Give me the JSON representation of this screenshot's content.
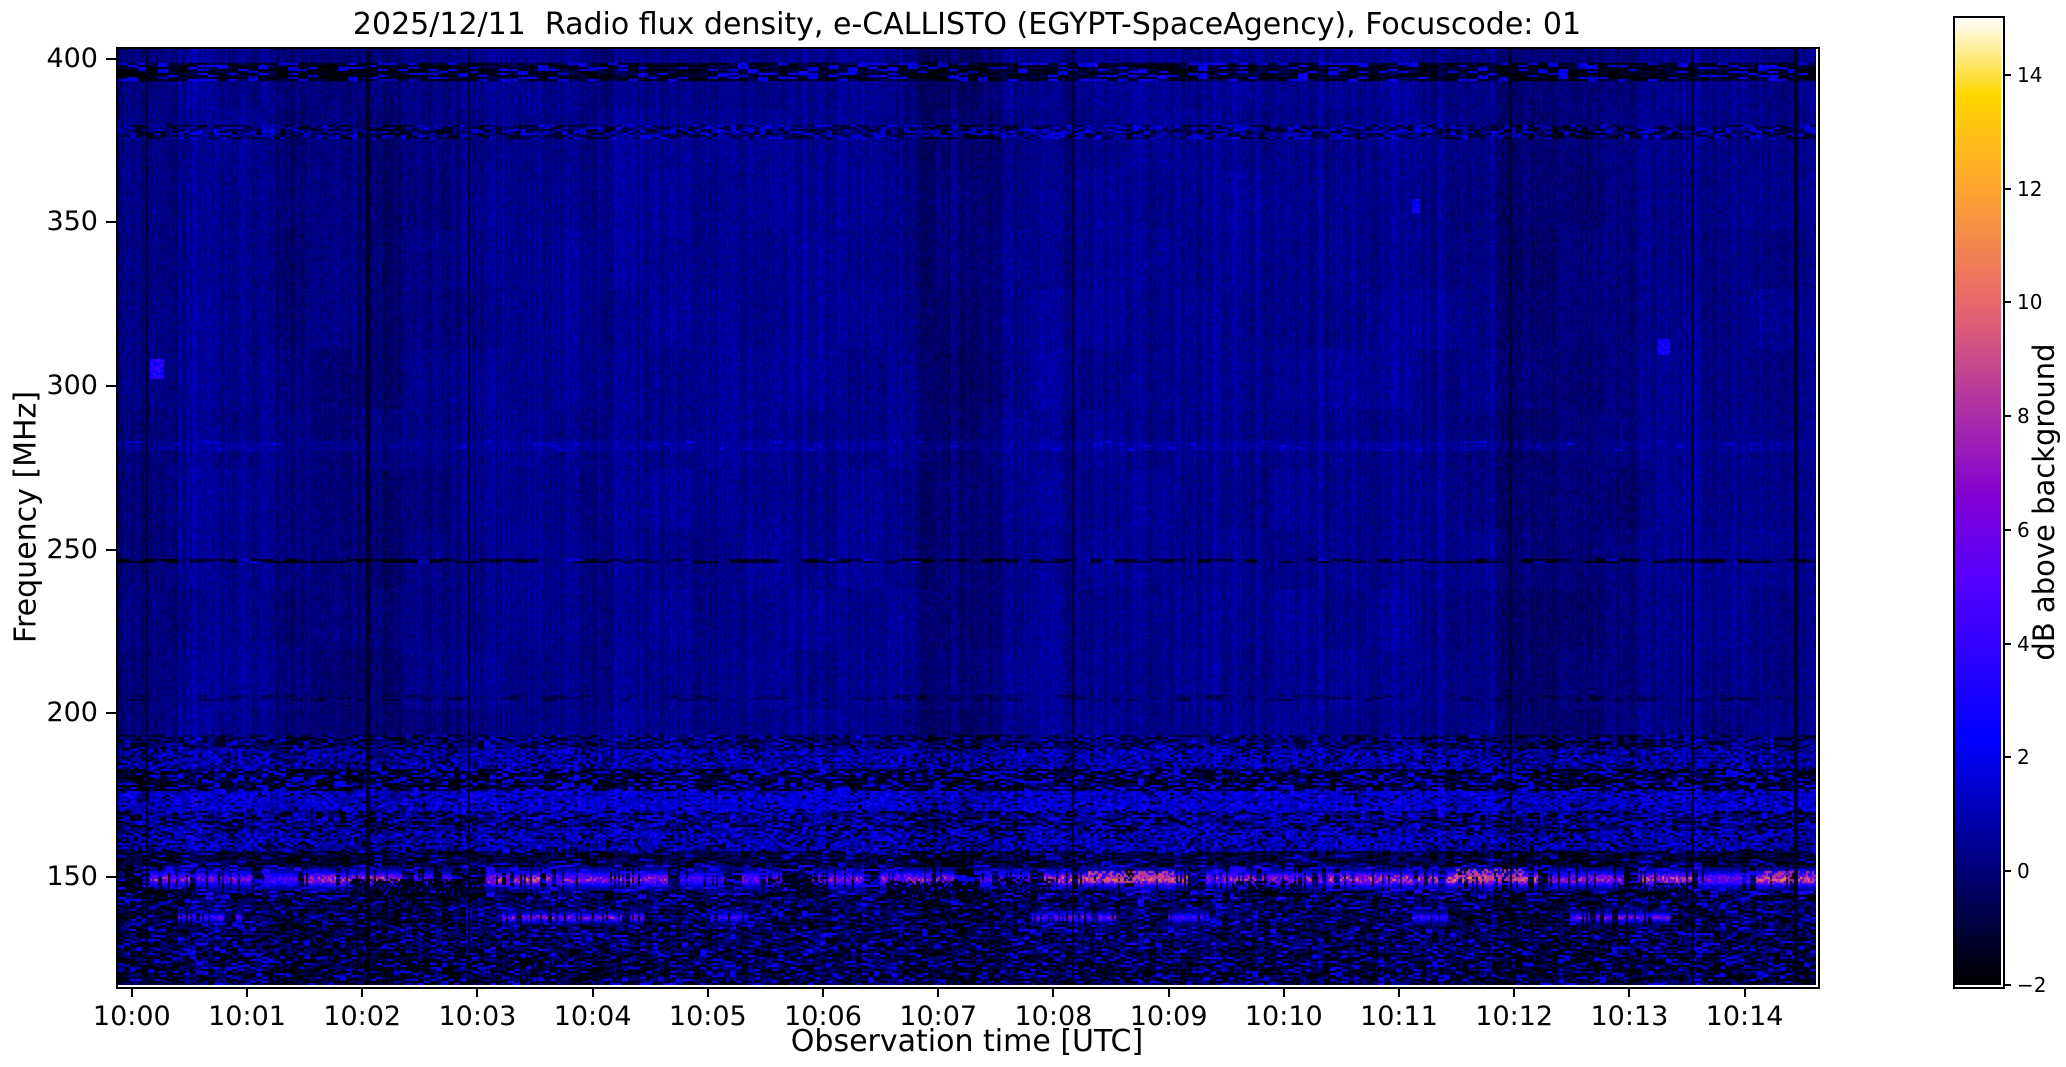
{
  "chart_data": {
    "type": "heatmap",
    "title": "2025/12/11  Radio flux density, e-CALLISTO (EGYPT-SpaceAgency), Focuscode: 01",
    "xlabel": "Observation time [UTC]",
    "ylabel": "Frequency [MHz]",
    "x_ticks": [
      {
        "minute": 0,
        "label": "10:00"
      },
      {
        "minute": 1,
        "label": "10:01"
      },
      {
        "minute": 2,
        "label": "10:02"
      },
      {
        "minute": 3,
        "label": "10:03"
      },
      {
        "minute": 4,
        "label": "10:04"
      },
      {
        "minute": 5,
        "label": "10:05"
      },
      {
        "minute": 6,
        "label": "10:06"
      },
      {
        "minute": 7,
        "label": "10:07"
      },
      {
        "minute": 8,
        "label": "10:08"
      },
      {
        "minute": 9,
        "label": "10:09"
      },
      {
        "minute": 10,
        "label": "10:10"
      },
      {
        "minute": 11,
        "label": "10:11"
      },
      {
        "minute": 12,
        "label": "10:12"
      },
      {
        "minute": 13,
        "label": "10:13"
      },
      {
        "minute": 14,
        "label": "10:14"
      }
    ],
    "x_range_minutes": [
      -0.12,
      14.62
    ],
    "x_start_time_utc": "10:00",
    "y_ticks": [
      {
        "value": 400,
        "label": "400"
      },
      {
        "value": 350,
        "label": "350"
      },
      {
        "value": 300,
        "label": "300"
      },
      {
        "value": 250,
        "label": "250"
      },
      {
        "value": 200,
        "label": "200"
      },
      {
        "value": 150,
        "label": "150"
      }
    ],
    "y_range_mhz": [
      117,
      403
    ],
    "grid": false,
    "colorbar": {
      "label": "dB above background",
      "ticks": [
        {
          "value": 14,
          "label": "14"
        },
        {
          "value": 12,
          "label": "12"
        },
        {
          "value": 10,
          "label": "10"
        },
        {
          "value": 8,
          "label": "8"
        },
        {
          "value": 6,
          "label": "6"
        },
        {
          "value": 4,
          "label": "4"
        },
        {
          "value": 2,
          "label": "2"
        },
        {
          "value": 0,
          "label": "0"
        },
        {
          "value": -2,
          "label": "−2"
        }
      ],
      "range": [
        -2,
        15
      ],
      "colormap": "gnuplot2",
      "stops": [
        [
          0.0,
          "#000000"
        ],
        [
          0.118,
          "#000078"
        ],
        [
          0.25,
          "#0000ff"
        ],
        [
          0.353,
          "#3500ff"
        ],
        [
          0.42,
          "#5700ff"
        ],
        [
          0.5,
          "#8000d6"
        ],
        [
          0.588,
          "#ac2da9"
        ],
        [
          0.706,
          "#e9696d"
        ],
        [
          0.824,
          "#ffa531"
        ],
        [
          0.92,
          "#ffd600"
        ],
        [
          0.941,
          "#ffe143"
        ],
        [
          1.0,
          "#ffffff"
        ]
      ]
    },
    "background_level_db": 0.4,
    "noise_amplitude_db": 0.5,
    "vertical_lines_min": [
      0.13,
      2.05,
      2.93,
      8.17,
      11.97,
      13.55,
      14.45
    ],
    "dark_columns": [
      [
        -0.12,
        0.4,
        -0.3
      ],
      [
        1.25,
        2.6,
        -0.35
      ],
      [
        2.6,
        3.1,
        -0.2
      ],
      [
        6.8,
        7.55,
        -0.5
      ],
      [
        11.85,
        13.1,
        -0.45
      ]
    ],
    "bands": [
      {
        "f0": 393.5,
        "f1": 398.5,
        "mean": -0.8,
        "amp": 0.5,
        "dark_p": 0.45,
        "dark_v": -1.7,
        "bright_p": 0.25,
        "bright_v": 2.2,
        "clump": 5
      },
      {
        "f0": 375.5,
        "f1": 379.5,
        "mean": 0.2,
        "amp": 0.8,
        "dark_p": 0.35,
        "dark_v": -1.2,
        "bright_p": 0.3,
        "bright_v": 1.6,
        "clump": 3
      },
      {
        "f0": 280.0,
        "f1": 283.0,
        "mean": 0.7,
        "amp": 0.4,
        "dark_p": 0.0,
        "dark_v": -1.0,
        "bright_p": 0.07,
        "bright_v": 1.6,
        "clump": 4
      },
      {
        "f0": 245.8,
        "f1": 247.3,
        "mean": 0.2,
        "amp": 0.5,
        "dark_p": 0.55,
        "dark_v": -1.4,
        "bright_p": 0.05,
        "bright_v": 1.6,
        "clump": 6
      },
      {
        "f0": 203.5,
        "f1": 205.5,
        "mean": 0.3,
        "amp": 0.5,
        "dark_p": 0.25,
        "dark_v": -0.7,
        "bright_p": 0.0,
        "bright_v": 1.5,
        "clump": 4
      },
      {
        "f0": 189.0,
        "f1": 193.5,
        "mean": 0.3,
        "amp": 0.7,
        "dark_p": 0.4,
        "dark_v": -1.2,
        "bright_p": 0.15,
        "bright_v": 1.6,
        "clump": 3
      },
      {
        "f0": 183.0,
        "f1": 189.0,
        "mean": 0.8,
        "amp": 1.0,
        "dark_p": 0.2,
        "dark_v": -1.0,
        "bright_p": 0.2,
        "bright_v": 2.0,
        "clump": 2
      },
      {
        "f0": 176.0,
        "f1": 183.0,
        "mean": -0.6,
        "amp": 0.8,
        "dark_p": 0.35,
        "dark_v": -1.8,
        "bright_p": 0.25,
        "bright_v": 2.2,
        "clump": 3
      },
      {
        "f0": 170.0,
        "f1": 176.0,
        "mean": 1.3,
        "amp": 0.9,
        "dark_p": 0.1,
        "dark_v": -1.0,
        "bright_p": 0.25,
        "bright_v": 2.5,
        "clump": 2
      },
      {
        "f0": 164.0,
        "f1": 170.0,
        "mean": 0.4,
        "amp": 1.2,
        "dark_p": 0.25,
        "dark_v": -1.5,
        "bright_p": 0.2,
        "bright_v": 2.2,
        "clump": 3
      },
      {
        "f0": 158.0,
        "f1": 164.0,
        "mean": 0.9,
        "amp": 1.0,
        "dark_p": 0.2,
        "dark_v": -1.3,
        "bright_p": 0.2,
        "bright_v": 2.3,
        "clump": 2
      },
      {
        "f0": 153.5,
        "f1": 158.0,
        "mean": -0.5,
        "amp": 0.7,
        "dark_p": 0.35,
        "dark_v": -1.7,
        "bright_p": 0.1,
        "bright_v": 1.8,
        "clump": 4
      },
      {
        "f0": 143.0,
        "f1": 153.5,
        "mean": 0.0,
        "amp": 1.5,
        "dark_p": 0.3,
        "dark_v": -1.9,
        "bright_p": 0.15,
        "bright_v": 3.0,
        "clump": 4
      },
      {
        "f0": 135.0,
        "f1": 143.0,
        "mean": -0.2,
        "amp": 1.2,
        "dark_p": 0.3,
        "dark_v": -1.7,
        "bright_p": 0.12,
        "bright_v": 2.2,
        "clump": 3
      },
      {
        "f0": 127.0,
        "f1": 135.0,
        "mean": -0.1,
        "amp": 1.3,
        "dark_p": 0.3,
        "dark_v": -1.8,
        "bright_p": 0.12,
        "bright_v": 2.6,
        "clump": 3
      },
      {
        "f0": 117.0,
        "f1": 127.0,
        "mean": -0.4,
        "amp": 1.3,
        "dark_p": 0.35,
        "dark_v": -1.9,
        "bright_p": 0.15,
        "bright_v": 2.2,
        "clump": 3
      }
    ],
    "streak_150": {
      "center": 149.3,
      "sigma": 1.9,
      "f_lo": 145.5,
      "f_hi": 153.0,
      "gap_p": 0.25,
      "segments": [
        [
          0.15,
          0.5,
          6.5
        ],
        [
          0.55,
          1.05,
          5.5
        ],
        [
          1.15,
          1.45,
          4.5
        ],
        [
          1.5,
          2.35,
          7.0
        ],
        [
          2.45,
          2.8,
          4.5
        ],
        [
          3.05,
          3.55,
          7.5
        ],
        [
          3.6,
          4.65,
          6.5
        ],
        [
          4.7,
          5.15,
          4.5
        ],
        [
          5.3,
          5.65,
          5.5
        ],
        [
          5.9,
          6.35,
          6.0
        ],
        [
          6.5,
          7.15,
          6.5
        ],
        [
          7.35,
          7.8,
          5.0
        ],
        [
          7.9,
          9.2,
          8.0
        ],
        [
          9.3,
          10.25,
          6.5
        ],
        [
          10.3,
          11.35,
          7.5
        ],
        [
          11.4,
          12.2,
          8.5
        ],
        [
          12.3,
          12.95,
          6.5
        ],
        [
          13.05,
          13.55,
          7.5
        ],
        [
          13.6,
          14.05,
          5.5
        ],
        [
          14.1,
          14.62,
          8.0
        ]
      ]
    },
    "streak_137": {
      "center": 137.6,
      "sigma": 1.1,
      "f_lo": 135.5,
      "f_hi": 140.0,
      "gap_p": 0.3,
      "segments": [
        [
          0.4,
          0.95,
          4.5
        ],
        [
          3.2,
          4.45,
          6.0
        ],
        [
          5.0,
          5.35,
          4.0
        ],
        [
          7.8,
          8.55,
          5.5
        ],
        [
          9.0,
          9.35,
          4.2
        ],
        [
          11.1,
          11.45,
          3.8
        ],
        [
          12.45,
          13.35,
          5.5
        ]
      ]
    },
    "patches": [
      {
        "t0": 0.0,
        "t1": 0.6,
        "f0": 143,
        "f1": 147,
        "v": -1.6,
        "p": 0.6
      },
      {
        "t0": 1.9,
        "t1": 3.05,
        "f0": 144,
        "f1": 149.5,
        "v": -1.7,
        "p": 0.7
      },
      {
        "t0": 5.55,
        "t1": 6.05,
        "f0": 144,
        "f1": 150,
        "v": -1.6,
        "p": 0.6
      },
      {
        "t0": 6.55,
        "t1": 7.35,
        "f0": 143,
        "f1": 149,
        "v": -1.7,
        "p": 0.65
      },
      {
        "t0": 7.5,
        "t1": 8.0,
        "f0": 145,
        "f1": 150,
        "v": -1.5,
        "p": 0.6
      },
      {
        "t0": 9.55,
        "t1": 10.15,
        "f0": 144,
        "f1": 149,
        "v": -1.6,
        "p": 0.6
      },
      {
        "t0": 12.9,
        "t1": 13.6,
        "f0": 143,
        "f1": 148,
        "v": -1.6,
        "p": 0.6
      },
      {
        "t0": 8.3,
        "t1": 9.05,
        "f0": 148,
        "f1": 152,
        "v": 9.0,
        "p": 0.5
      },
      {
        "t0": 11.5,
        "t1": 12.1,
        "f0": 149,
        "f1": 152.5,
        "v": 9.0,
        "p": 0.5
      },
      {
        "t0": 14.15,
        "t1": 14.62,
        "f0": 148,
        "f1": 152,
        "v": 8.5,
        "p": 0.5
      }
    ],
    "blobs": [
      {
        "t": 0.22,
        "f": 305,
        "dt": 0.06,
        "df": 3.0,
        "v": 3.2
      },
      {
        "t": 13.3,
        "f": 312,
        "dt": 0.05,
        "df": 2.5,
        "v": 2.8
      },
      {
        "t": 11.15,
        "f": 355,
        "dt": 0.04,
        "df": 2.0,
        "v": 2.4
      }
    ]
  }
}
